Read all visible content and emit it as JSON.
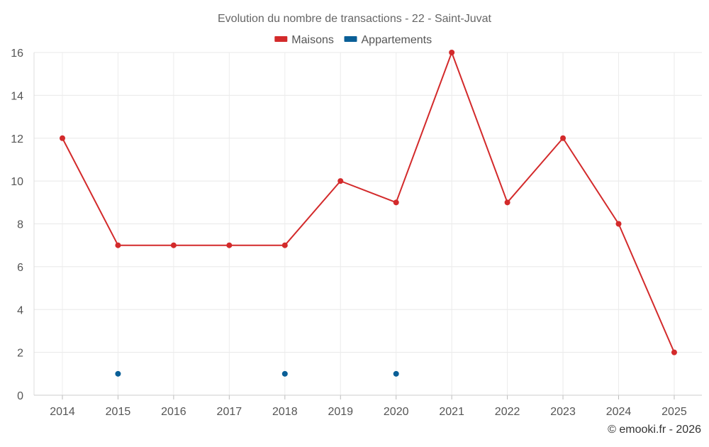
{
  "chart_data": {
    "type": "line",
    "title": "Evolution du nombre de transactions - 22 - Saint-Juvat",
    "xlabel": "",
    "ylabel": "",
    "categories": [
      "2014",
      "2015",
      "2016",
      "2017",
      "2018",
      "2019",
      "2020",
      "2021",
      "2022",
      "2023",
      "2024",
      "2025"
    ],
    "ylim": [
      0,
      16
    ],
    "yticks": [
      0,
      2,
      4,
      6,
      8,
      10,
      12,
      14,
      16
    ],
    "grid": true,
    "legend_position": "top-center",
    "series": [
      {
        "name": "Maisons",
        "color": "#d32a2b",
        "values": [
          12,
          7,
          7,
          7,
          7,
          10,
          9,
          16,
          9,
          12,
          8,
          2
        ]
      },
      {
        "name": "Appartements",
        "color": "#0a5f97",
        "values": [
          null,
          1,
          null,
          null,
          1,
          null,
          1,
          null,
          null,
          null,
          null,
          null
        ]
      }
    ]
  },
  "footer": {
    "credit": "© emooki.fr - 2026"
  }
}
